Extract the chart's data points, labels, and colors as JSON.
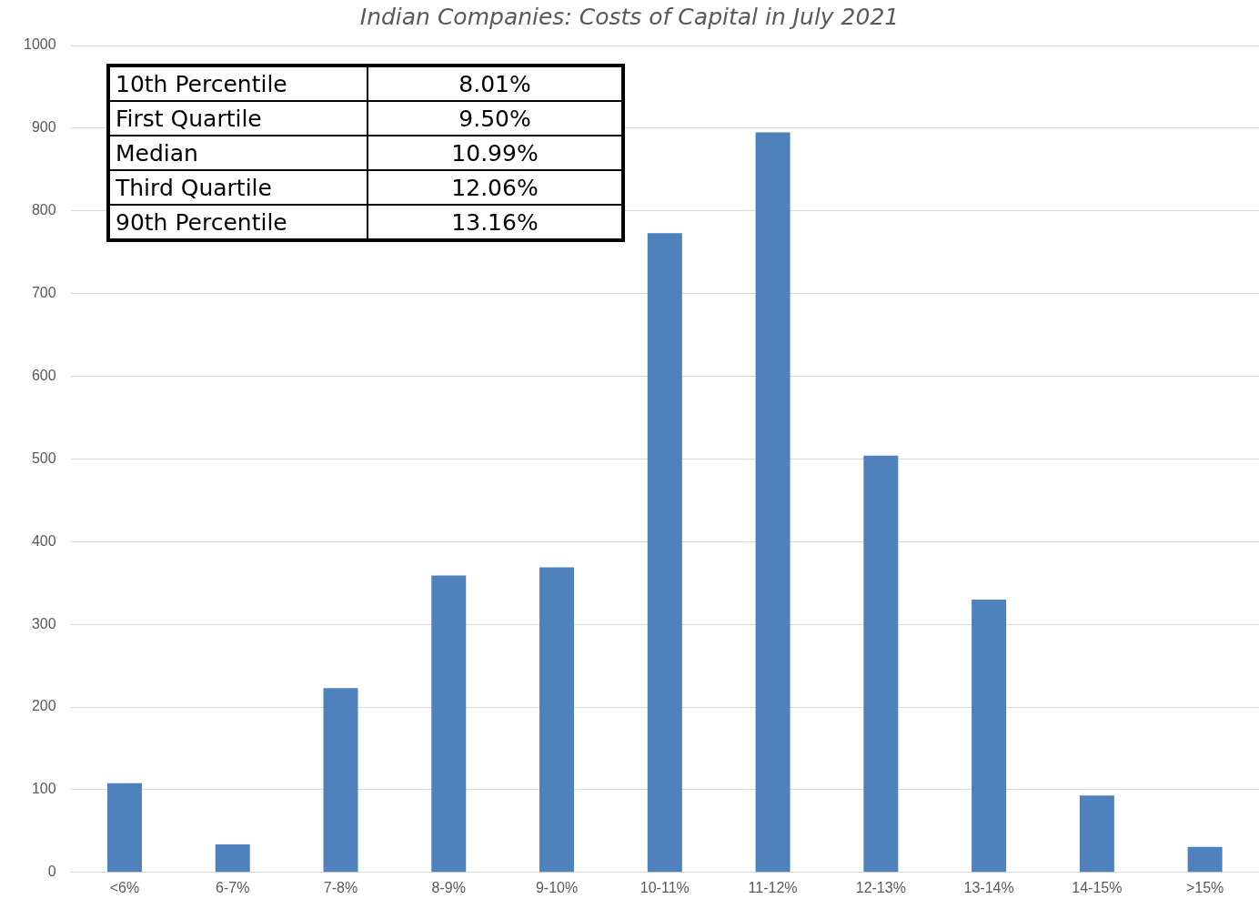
{
  "chart_data": {
    "type": "bar",
    "title": "Indian Companies: Costs of Capital in July 2021",
    "categories": [
      "<6%",
      "6-7%",
      "7-8%",
      "8-9%",
      "9-10%",
      "10-11%",
      "11-12%",
      "12-13%",
      "13-14%",
      "14-15%",
      ">15%"
    ],
    "values": [
      108,
      34,
      223,
      359,
      369,
      773,
      895,
      504,
      330,
      93,
      31
    ],
    "color": "#4f81bd",
    "ylim": [
      0,
      1000
    ],
    "yticks": [
      0,
      100,
      200,
      300,
      400,
      500,
      600,
      700,
      800,
      900,
      1000
    ],
    "grid": "y",
    "annotations": [
      "10th Percentile",
      "8.01%",
      "First Quartile",
      "9.50%",
      "Median",
      "10.99%",
      "Third Quartile",
      "12.06%",
      "90th Percentile",
      "13.16%"
    ]
  }
}
